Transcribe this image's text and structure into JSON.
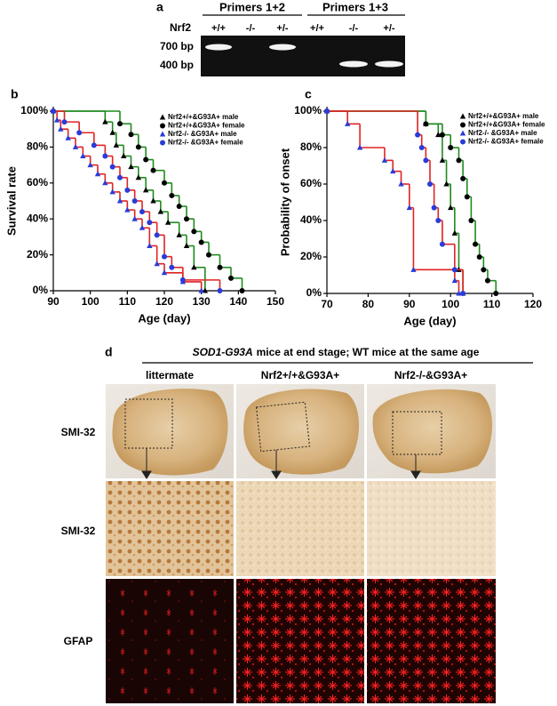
{
  "panel_a": {
    "label": "a",
    "primer_groups": [
      "Primers 1+2",
      "Primers 1+3"
    ],
    "row_label": "Nrf2",
    "genotypes": [
      "+/+",
      "-/-",
      "+/-",
      "+/+",
      "-/-",
      "+/-"
    ],
    "band_sizes": [
      "700 bp",
      "400 bp"
    ]
  },
  "chart_data": [
    {
      "type": "step",
      "label": "b",
      "xlabel": "Age (day)",
      "ylabel": "Survival rate",
      "xlim": [
        90,
        150
      ],
      "xticks": [
        90,
        100,
        110,
        120,
        130,
        140,
        150
      ],
      "ylim": [
        0,
        100
      ],
      "yticks": [
        {
          "value": 0,
          "label": "0%"
        },
        {
          "value": 20,
          "label": "20%"
        },
        {
          "value": 40,
          "label": "40%"
        },
        {
          "value": 60,
          "label": "60%"
        },
        {
          "value": 80,
          "label": "80%"
        },
        {
          "value": 100,
          "label": "100%"
        }
      ],
      "legend": "upper right",
      "series": [
        {
          "name": "Nrf2+/+&G93A+ male",
          "color": "#1f8a1f",
          "marker_color": "#000000",
          "marker": "triangle",
          "x": [
            90,
            104,
            106,
            107,
            109,
            111,
            113,
            115,
            117,
            119,
            121,
            124,
            126,
            128,
            131
          ],
          "values": [
            100,
            94,
            88,
            81,
            75,
            69,
            63,
            56,
            50,
            44,
            38,
            31,
            25,
            13,
            0
          ]
        },
        {
          "name": "Nrf2+/+&G93A+ female",
          "color": "#1f8a1f",
          "marker_color": "#000000",
          "marker": "circle",
          "x": [
            90,
            108,
            111,
            113,
            115,
            117,
            120,
            122,
            124,
            126,
            128,
            130,
            132,
            135,
            138,
            141
          ],
          "values": [
            100,
            93,
            87,
            80,
            73,
            67,
            60,
            53,
            47,
            40,
            33,
            27,
            20,
            13,
            7,
            0
          ]
        },
        {
          "name": "Nrf2-/- &G93A+ male",
          "color": "#e02222",
          "marker_color": "#2a3cd8",
          "marker": "triangle",
          "x": [
            90,
            91,
            92,
            94,
            96,
            98,
            100,
            102,
            104,
            106,
            108,
            110,
            112,
            114,
            116,
            118,
            120,
            125,
            130
          ],
          "values": [
            100,
            95,
            90,
            85,
            80,
            75,
            70,
            65,
            60,
            55,
            50,
            45,
            40,
            35,
            25,
            15,
            10,
            5,
            0
          ]
        },
        {
          "name": "Nrf2-/- &G93A+ female",
          "color": "#e02222",
          "marker_color": "#2a3cd8",
          "marker": "circle",
          "x": [
            90,
            93,
            97,
            101,
            104,
            106,
            108,
            110,
            112,
            114,
            116,
            118,
            120,
            122,
            125,
            135
          ],
          "values": [
            100,
            94,
            88,
            81,
            75,
            69,
            63,
            56,
            50,
            44,
            38,
            31,
            19,
            13,
            6,
            0
          ]
        }
      ]
    },
    {
      "type": "step",
      "label": "c",
      "xlabel": "Age (day)",
      "ylabel": "Probability of onset",
      "xlim": [
        70,
        120
      ],
      "xticks": [
        70,
        80,
        90,
        100,
        110,
        120
      ],
      "ylim": [
        0,
        100
      ],
      "yticks": [
        {
          "value": 0,
          "label": "0%"
        },
        {
          "value": 20,
          "label": "20%"
        },
        {
          "value": 40,
          "label": "40%"
        },
        {
          "value": 60,
          "label": "60%"
        },
        {
          "value": 80,
          "label": "80%"
        },
        {
          "value": 100,
          "label": "100%"
        }
      ],
      "legend": "upper right",
      "series": [
        {
          "name": "Nrf2+/+&G93A+ male",
          "color": "#1f8a1f",
          "marker_color": "#000000",
          "marker": "triangle",
          "x": [
            70,
            94,
            97,
            98,
            99,
            100,
            101,
            102,
            103
          ],
          "values": [
            100,
            93,
            87,
            73,
            60,
            47,
            33,
            13,
            0
          ]
        },
        {
          "name": "Nrf2+/+&G93A+ female",
          "color": "#1f8a1f",
          "marker_color": "#000000",
          "marker": "circle",
          "x": [
            70,
            94,
            98,
            100,
            102,
            103,
            104,
            105,
            106,
            107,
            108,
            109,
            111
          ],
          "values": [
            100,
            93,
            87,
            80,
            73,
            63,
            53,
            40,
            27,
            20,
            13,
            7,
            0
          ]
        },
        {
          "name": "Nrf2-/- &G93A+ male",
          "color": "#e02222",
          "marker_color": "#2a3cd8",
          "marker": "triangle",
          "x": [
            70,
            75,
            78,
            84,
            86,
            88,
            90,
            91,
            101,
            102
          ],
          "values": [
            100,
            93,
            80,
            73,
            67,
            60,
            47,
            13,
            7,
            0
          ]
        },
        {
          "name": "Nrf2-/- &G93A+ female",
          "color": "#e02222",
          "marker_color": "#2a3cd8",
          "marker": "circle",
          "x": [
            70,
            92,
            93,
            94,
            95,
            96,
            97,
            98,
            101,
            103
          ],
          "values": [
            100,
            87,
            80,
            73,
            60,
            47,
            40,
            27,
            13,
            0
          ]
        }
      ]
    }
  ],
  "panel_d": {
    "label": "d",
    "header": {
      "italic": "SOD1-G93A",
      "text": "mice at end stage; WT mice at the same age"
    },
    "columns": [
      "littermate",
      "Nrf2+/+&G93A+",
      "Nrf2-/-&G93A+"
    ],
    "rows": [
      "SMI-32",
      "SMI-32",
      "GFAP"
    ]
  }
}
